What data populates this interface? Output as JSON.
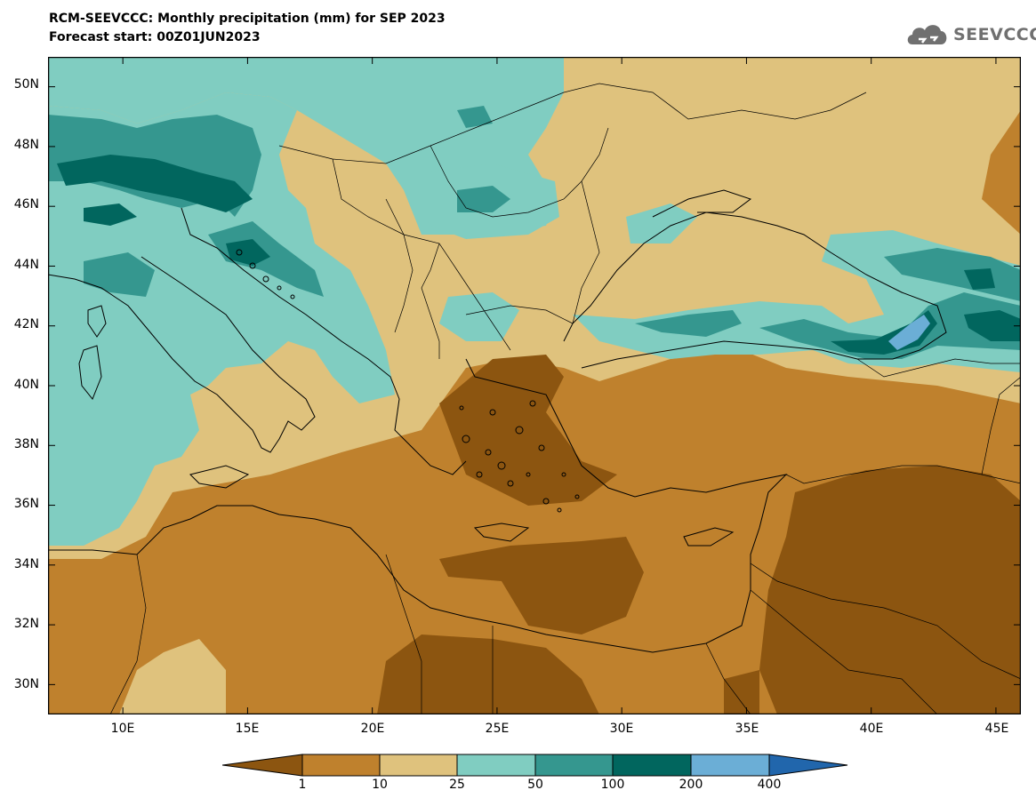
{
  "header": {
    "title": "RCM-SEEVCCC: Monthly precipitation (mm) for SEP 2023",
    "subtitle": "Forecast start: 00Z01JUN2023"
  },
  "logo": {
    "text": "SEEVCCC",
    "icon": "cloud-icon"
  },
  "map": {
    "lon_range": [
      7,
      46
    ],
    "lat_range": [
      29,
      51
    ],
    "lat_labels": [
      "50N",
      "48N",
      "46N",
      "44N",
      "42N",
      "40N",
      "38N",
      "36N",
      "34N",
      "32N",
      "30N"
    ],
    "lon_labels": [
      "10E",
      "15E",
      "20E",
      "25E",
      "30E",
      "35E",
      "40E",
      "45E"
    ]
  },
  "colorbar": {
    "levels": [
      "1",
      "10",
      "25",
      "50",
      "100",
      "200",
      "400"
    ],
    "colors": [
      "#8c5510",
      "#bf812d",
      "#dfc27d",
      "#80cdc1",
      "#35978f",
      "#01665e",
      "#6baed6",
      "#2166ac"
    ]
  }
}
